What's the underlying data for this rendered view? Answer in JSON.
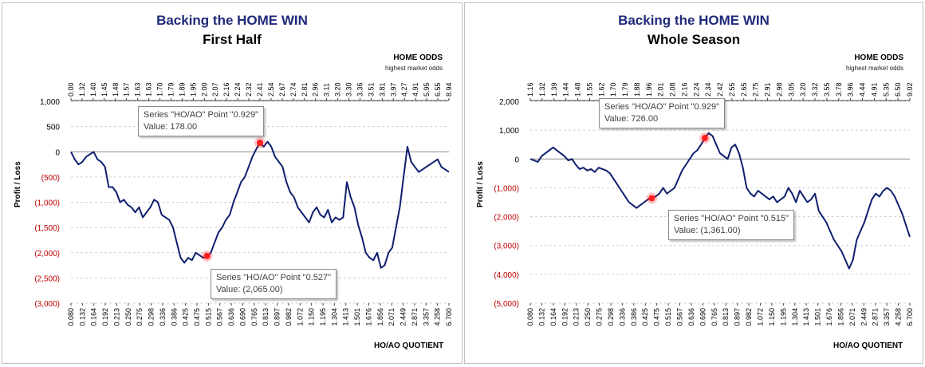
{
  "colors": {
    "line": "#0f1f6e",
    "title": "#1f2a7a",
    "negative": "#c00000",
    "grid": "#d0d0d0",
    "marker": "#ff1f1f"
  },
  "chart_data": [
    {
      "type": "line",
      "title": "Backing the HOME WIN",
      "subtitle": "First Half",
      "top_axis_title": "HOME ODDS",
      "top_axis_subtitle": "highest market odds",
      "xlabel": "HO/AO QUOTIENT",
      "ylabel": "Profit / Loss",
      "ylim": [
        -3000,
        1000
      ],
      "y_ticks": [
        1000,
        500,
        0,
        -500,
        -1000,
        -1500,
        -2000,
        -2500,
        -3000
      ],
      "y_tick_labels": [
        "1,000",
        "500",
        "0",
        "(500)",
        "(1,000)",
        "(1,500)",
        "(2,000)",
        "(2,500)",
        "(3,000)"
      ],
      "grid": true,
      "bottom_ticks": [
        "0.080",
        "0.132",
        "0.164",
        "0.192",
        "0.213",
        "0.250",
        "0.275",
        "0.298",
        "0.336",
        "0.386",
        "0.425",
        "0.475",
        "0.515",
        "0.567",
        "0.636",
        "0.690",
        "0.765",
        "0.813",
        "0.897",
        "0.982",
        "1.072",
        "1.150",
        "1.195",
        "1.304",
        "1.413",
        "1.501",
        "1.676",
        "1.856",
        "2.071",
        "2.449",
        "2.871",
        "3.357",
        "4.258",
        "6.700"
      ],
      "top_ticks": [
        "0.00",
        "1.32",
        "1.40",
        "1.45",
        "1.48",
        "1.57",
        "1.63",
        "1.63",
        "1.70",
        "1.79",
        "1.89",
        "1.95",
        "2.00",
        "2.07",
        "2.16",
        "2.24",
        "2.32",
        "2.41",
        "2.54",
        "2.67",
        "2.74",
        "2.81",
        "2.96",
        "3.11",
        "3.20",
        "3.30",
        "3.36",
        "3.51",
        "3.81",
        "3.97",
        "4.27",
        "4.91",
        "5.95",
        "6.55",
        "8.94"
      ],
      "x": [
        0,
        1,
        2,
        3,
        4,
        5,
        6,
        7,
        8,
        9,
        10,
        11,
        12,
        13,
        14,
        15,
        16,
        17,
        18,
        19,
        20,
        21,
        22,
        23,
        24,
        25,
        26,
        27,
        28,
        29,
        30,
        31,
        32,
        33,
        34,
        35,
        36,
        37,
        38,
        39,
        40,
        41,
        42,
        43,
        44,
        45,
        46,
        47,
        48,
        49,
        50,
        51,
        52,
        53,
        54,
        55,
        56,
        57,
        58,
        59,
        60,
        61,
        62,
        63,
        64,
        65,
        66,
        67,
        68,
        69,
        70,
        71,
        72,
        73,
        74,
        75,
        76,
        77,
        78,
        79,
        80,
        81,
        82,
        83,
        84,
        85,
        86,
        87,
        88,
        89,
        90,
        91,
        92,
        93,
        94,
        95,
        96,
        97,
        98,
        99,
        100
      ],
      "series": [
        {
          "values": [
            0,
            -150,
            -250,
            -200,
            -100,
            -50,
            0,
            -150,
            -200,
            -300,
            -700,
            -700,
            -800,
            -1000,
            -950,
            -1050,
            -1100,
            -1200,
            -1100,
            -1300,
            -1200,
            -1100,
            -950,
            -1000,
            -1250,
            -1300,
            -1350,
            -1500,
            -1800,
            -2100,
            -2200,
            -2100,
            -2150,
            -2000,
            -2050,
            -2100,
            -2065,
            -2000,
            -1800,
            -1600,
            -1500,
            -1350,
            -1250,
            -1000,
            -800,
            -600,
            -500,
            -300,
            -100,
            50,
            178,
            100,
            200,
            100,
            -100,
            -200,
            -300,
            -600,
            -800,
            -900,
            -1100,
            -1200,
            -1300,
            -1400,
            -1200,
            -1100,
            -1250,
            -1300,
            -1150,
            -1400,
            -1300,
            -1350,
            -1300,
            -600,
            -900,
            -1100,
            -1450,
            -1700,
            -2000,
            -2100,
            -2150,
            -2000,
            -2300,
            -2250,
            -2000,
            -1900,
            -1500,
            -1100,
            -500,
            100,
            -200,
            -300,
            -400,
            -350,
            -300,
            -250,
            -200,
            -150,
            -300,
            -350,
            -400
          ]
        }
      ],
      "callouts": [
        {
          "line1": "Series \"HO/AO\" Point \"0.929\"",
          "line2": "Value: 178.00",
          "point_index": 50
        },
        {
          "line1": "Series \"HO/AO\" Point \"0.527\"",
          "line2": "Value: (2,065.00)",
          "point_index": 36
        }
      ]
    },
    {
      "type": "line",
      "title": "Backing the HOME WIN",
      "subtitle": "Whole Season",
      "top_axis_title": "HOME ODDS",
      "top_axis_subtitle": "highest market odds",
      "xlabel": "HO/AO QUOTIENT",
      "ylabel": "Profit / Loss",
      "ylim": [
        -5000,
        2000
      ],
      "y_ticks": [
        2000,
        1000,
        0,
        -1000,
        -2000,
        -3000,
        -4000,
        -5000
      ],
      "y_tick_labels": [
        "2,000",
        "1,000",
        "0",
        "(1,000)",
        "(2,000)",
        "(3,000)",
        "(4,000)",
        "(5,000)"
      ],
      "grid": true,
      "bottom_ticks": [
        "0.080",
        "0.132",
        "0.164",
        "0.192",
        "0.213",
        "0.250",
        "0.275",
        "0.298",
        "0.336",
        "0.386",
        "0.425",
        "0.475",
        "0.515",
        "0.567",
        "0.636",
        "0.690",
        "0.765",
        "0.813",
        "0.897",
        "0.982",
        "1.072",
        "1.150",
        "1.195",
        "1.304",
        "1.413",
        "1.501",
        "1.676",
        "1.856",
        "2.071",
        "2.449",
        "2.871",
        "3.357",
        "4.258",
        "6.700"
      ],
      "top_ticks": [
        "1.16",
        "1.32",
        "1.39",
        "1.44",
        "1.48",
        "1.55",
        "1.62",
        "1.70",
        "1.79",
        "1.88",
        "1.96",
        "2.01",
        "2.08",
        "2.16",
        "2.24",
        "2.34",
        "2.42",
        "2.55",
        "2.65",
        "2.75",
        "2.91",
        "2.98",
        "3.05",
        "3.20",
        "3.32",
        "3.55",
        "3.78",
        "3.96",
        "4.44",
        "4.91",
        "5.35",
        "6.50",
        "9.02"
      ],
      "x": [
        0,
        1,
        2,
        3,
        4,
        5,
        6,
        7,
        8,
        9,
        10,
        11,
        12,
        13,
        14,
        15,
        16,
        17,
        18,
        19,
        20,
        21,
        22,
        23,
        24,
        25,
        26,
        27,
        28,
        29,
        30,
        31,
        32,
        33,
        34,
        35,
        36,
        37,
        38,
        39,
        40,
        41,
        42,
        43,
        44,
        45,
        46,
        47,
        48,
        49,
        50,
        51,
        52,
        53,
        54,
        55,
        56,
        57,
        58,
        59,
        60,
        61,
        62,
        63,
        64,
        65,
        66,
        67,
        68,
        69,
        70,
        71,
        72,
        73,
        74,
        75,
        76,
        77,
        78,
        79,
        80,
        81,
        82,
        83,
        84,
        85,
        86,
        87,
        88,
        89,
        90,
        91,
        92,
        93,
        94,
        95,
        96,
        97,
        98,
        99,
        100
      ],
      "series": [
        {
          "values": [
            0,
            -50,
            -100,
            100,
            200,
            300,
            400,
            300,
            200,
            100,
            -50,
            0,
            -200,
            -350,
            -300,
            -400,
            -350,
            -450,
            -300,
            -350,
            -400,
            -500,
            -700,
            -900,
            -1100,
            -1300,
            -1500,
            -1600,
            -1700,
            -1600,
            -1500,
            -1400,
            -1361,
            -1300,
            -1200,
            -1000,
            -1200,
            -1100,
            -1000,
            -700,
            -400,
            -200,
            0,
            200,
            300,
            500,
            726,
            900,
            800,
            500,
            200,
            100,
            0,
            400,
            500,
            200,
            -300,
            -1000,
            -1200,
            -1300,
            -1100,
            -1200,
            -1300,
            -1400,
            -1300,
            -1500,
            -1400,
            -1300,
            -1000,
            -1200,
            -1500,
            -1100,
            -1300,
            -1500,
            -1400,
            -1200,
            -1800,
            -2000,
            -2200,
            -2500,
            -2800,
            -3000,
            -3200,
            -3500,
            -3800,
            -3500,
            -2800,
            -2500,
            -2200,
            -1800,
            -1400,
            -1200,
            -1300,
            -1100,
            -1000,
            -1100,
            -1300,
            -1600,
            -1900,
            -2300,
            -2700
          ]
        }
      ],
      "callouts": [
        {
          "line1": "Series \"HO/AO\" Point \"0.929\"",
          "line2": "Value: 726.00",
          "point_index": 46
        },
        {
          "line1": "Series \"HO/AO\" Point \"0.515\"",
          "line2": "Value: (1,361.00)",
          "point_index": 32
        }
      ]
    }
  ]
}
